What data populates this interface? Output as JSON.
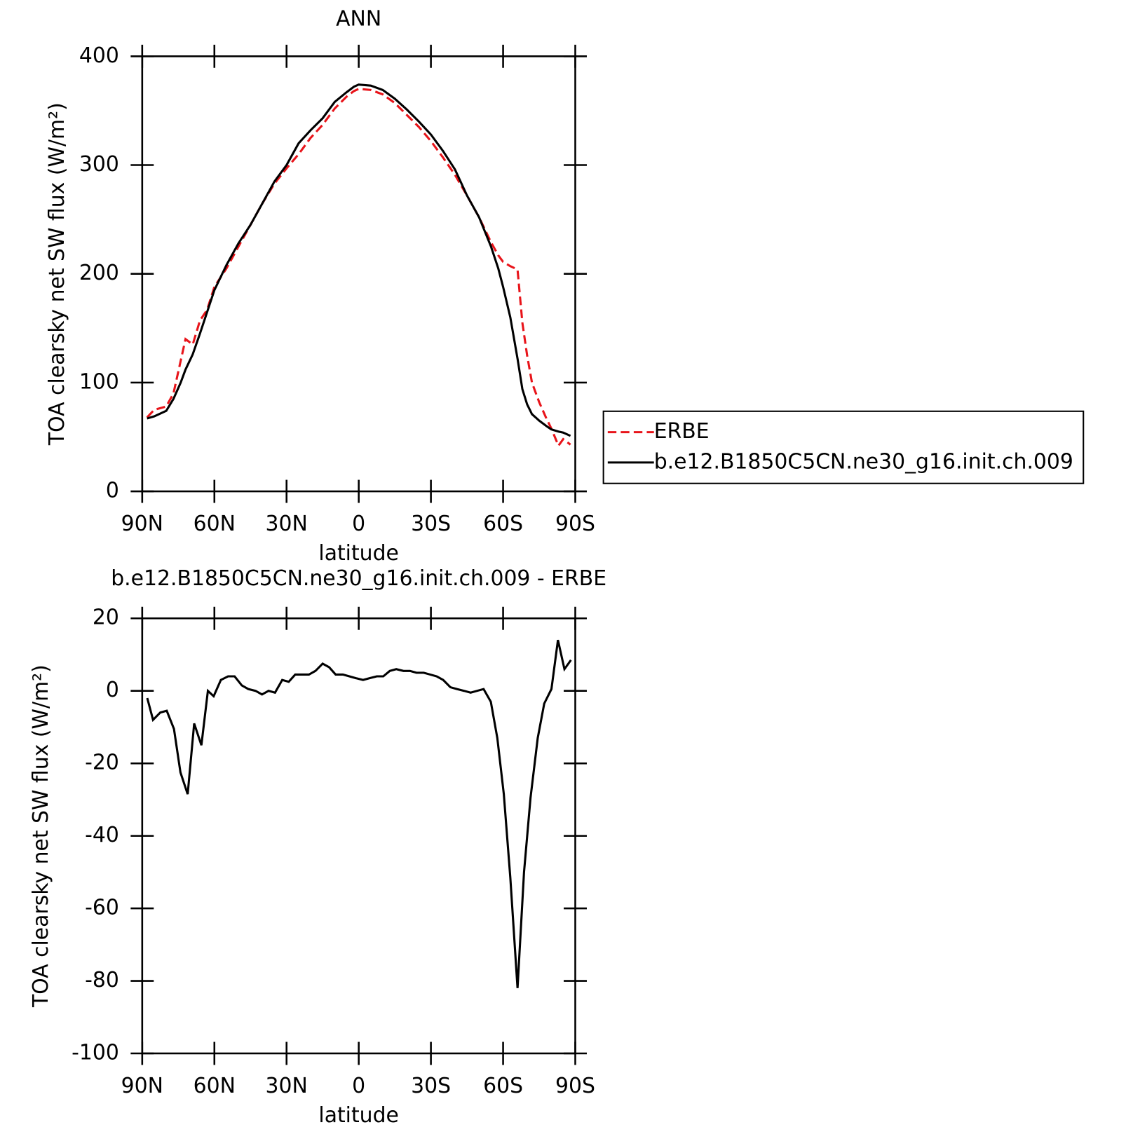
{
  "chart_data": [
    {
      "type": "line",
      "title": "ANN",
      "xlabel": "latitude",
      "ylabel": "TOA clearsky net SW flux (W/m²)",
      "x": [
        88,
        85,
        80,
        77,
        74,
        72,
        69,
        66,
        63,
        60,
        55,
        50,
        45,
        40,
        35,
        30,
        25,
        20,
        15,
        10,
        5,
        2,
        0,
        -5,
        -10,
        -15,
        -20,
        -25,
        -30,
        -35,
        -40,
        -45,
        -50,
        -55,
        -58,
        -60,
        -63,
        -66,
        -68,
        -70,
        -72,
        -75,
        -78,
        -80,
        -83,
        -85,
        -88
      ],
      "series": [
        {
          "name": "ERBE",
          "color": "#e8141a",
          "dash": "dashed",
          "values": [
            68,
            75,
            78,
            90,
            120,
            140,
            135,
            157,
            167,
            188,
            205,
            225,
            245,
            265,
            283,
            297,
            310,
            325,
            337,
            352,
            363,
            368,
            370,
            369,
            365,
            357,
            346,
            335,
            322,
            307,
            291,
            272,
            252,
            229,
            217,
            211,
            207,
            204,
            155,
            125,
            100,
            82,
            67,
            58,
            42,
            48,
            43
          ]
        },
        {
          "name": "b.e12.B1850C5CN.ne30_g16.init.ch.009",
          "color": "#000000",
          "dash": "solid",
          "values": [
            67,
            69,
            74,
            85,
            100,
            112,
            126,
            145,
            165,
            185,
            208,
            228,
            245,
            265,
            285,
            300,
            320,
            332,
            343,
            358,
            367,
            372,
            374,
            373,
            369,
            361,
            351,
            340,
            328,
            313,
            296,
            272,
            252,
            225,
            205,
            188,
            160,
            122,
            94,
            80,
            71,
            65,
            60,
            57,
            55,
            54,
            51
          ]
        }
      ],
      "xlim": [
        90,
        -90
      ],
      "xticks": [
        {
          "value": 90,
          "label": "90N"
        },
        {
          "value": 60,
          "label": "60N"
        },
        {
          "value": 30,
          "label": "30N"
        },
        0,
        {
          "value": -30,
          "label": "30S"
        },
        {
          "value": -60,
          "label": "60S"
        },
        {
          "value": -90,
          "label": "90S"
        }
      ],
      "ylim": [
        0,
        400
      ],
      "yticks": [
        0,
        100,
        200,
        300,
        400
      ],
      "grid": false,
      "legend_position": "outside-right"
    },
    {
      "type": "line",
      "title": "b.e12.B1850C5CN.ne30_g16.init.ch.009 - ERBE",
      "xlabel": "latitude",
      "ylabel": "TOA clearsky net SW flux (W/m²)",
      "x": [
        87.9,
        85.5,
        82.5,
        79.8,
        76.8,
        74.1,
        71.1,
        68.4,
        65.4,
        62.7,
        60.3,
        57.3,
        54.3,
        51.6,
        48.6,
        45.9,
        42.9,
        40.2,
        37.5,
        34.8,
        31.8,
        29.1,
        26.4,
        23.7,
        20.7,
        18,
        15,
        12.3,
        9.6,
        6.6,
        3.9,
        1.2,
        -1.8,
        -4.5,
        -7.5,
        -10.2,
        -12.9,
        -15.6,
        -18.6,
        -21.3,
        -24,
        -27,
        -29.7,
        -32.4,
        -35.1,
        -38.1,
        -40.8,
        -43.8,
        -46.5,
        -49.2,
        -51.9,
        -54.9,
        -57.6,
        -60.3,
        -63,
        -66,
        -68.7,
        -71.4,
        -74.4,
        -77.1,
        -80.1,
        -82.8,
        -85.5,
        -88.2
      ],
      "series": [
        {
          "name": "b.e12.B1850C5CN.ne30_g16.init.ch.009 - ERBE",
          "color": "#000000",
          "dash": "solid",
          "values": [
            -2,
            -8,
            -6,
            -5.5,
            -10.5,
            -22.5,
            -28.5,
            -9,
            -15,
            0,
            -1.5,
            3,
            4,
            4,
            1.5,
            0.5,
            0,
            -1,
            0,
            -0.5,
            3,
            2.5,
            4.5,
            4.5,
            4.5,
            5.5,
            7.5,
            6.5,
            4.5,
            4.5,
            4,
            3.5,
            3,
            3.5,
            4,
            4,
            5.5,
            6,
            5.5,
            5.5,
            5,
            5,
            4.5,
            4,
            3,
            1,
            0.5,
            0,
            -0.5,
            0,
            0.5,
            -3,
            -13,
            -28.5,
            -51.5,
            -82,
            -50,
            -29.5,
            -13,
            -3.5,
            0.5,
            14,
            6,
            8.5
          ]
        }
      ],
      "xlim": [
        90,
        -90
      ],
      "xticks": [
        {
          "value": 90,
          "label": "90N"
        },
        {
          "value": 60,
          "label": "60N"
        },
        {
          "value": 30,
          "label": "30N"
        },
        0,
        {
          "value": -30,
          "label": "30S"
        },
        {
          "value": -60,
          "label": "60S"
        },
        {
          "value": -90,
          "label": "90S"
        }
      ],
      "ylim": [
        -100,
        20
      ],
      "yticks": [
        20,
        0,
        -20,
        -40,
        -60,
        -80,
        -100
      ],
      "grid": false
    }
  ]
}
